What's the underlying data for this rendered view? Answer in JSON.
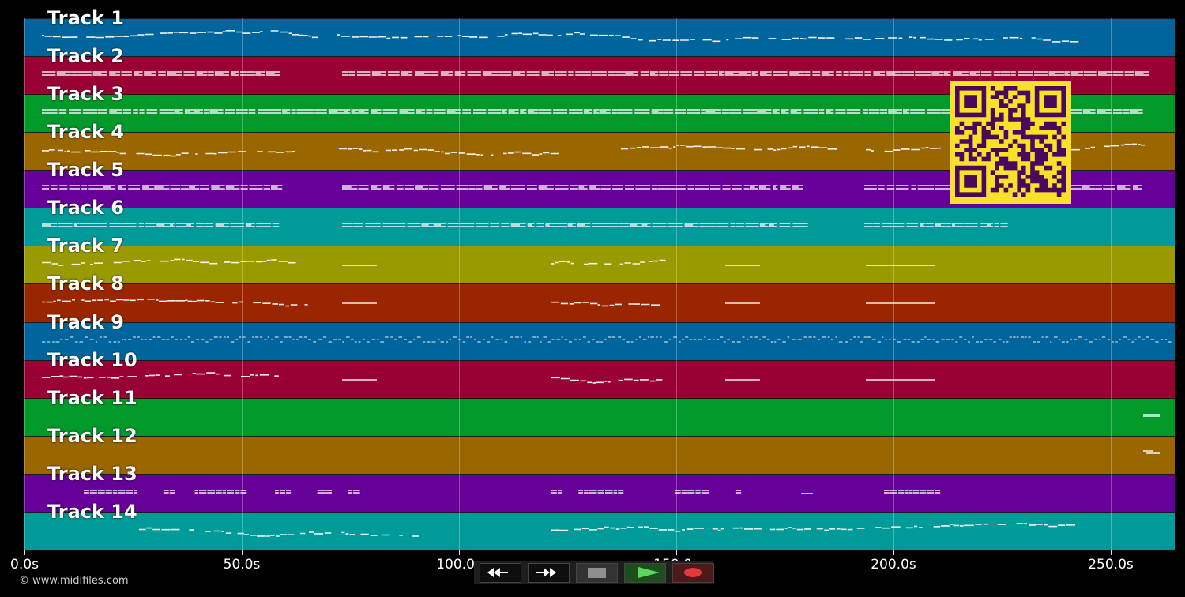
{
  "tracks": [
    {
      "label": "Track 1",
      "color": "#00659c"
    },
    {
      "label": "Track 2",
      "color": "#990033"
    },
    {
      "label": "Track 3",
      "color": "#00992a"
    },
    {
      "label": "Track 4",
      "color": "#996600"
    },
    {
      "label": "Track 5",
      "color": "#660099"
    },
    {
      "label": "Track 6",
      "color": "#009a99"
    },
    {
      "label": "Track 7",
      "color": "#999900"
    },
    {
      "label": "Track 8",
      "color": "#992600"
    },
    {
      "label": "Track 9",
      "color": "#00659c"
    },
    {
      "label": "Track 10",
      "color": "#990033"
    },
    {
      "label": "Track 11",
      "color": "#00992a"
    },
    {
      "label": "Track 12",
      "color": "#996600"
    },
    {
      "label": "Track 13",
      "color": "#660099"
    },
    {
      "label": "Track 14",
      "color": "#009a99"
    }
  ],
  "timeline": {
    "ticks": [
      {
        "seconds": 0,
        "label": "0.0s"
      },
      {
        "seconds": 50,
        "label": "50.0s"
      },
      {
        "seconds": 100,
        "label": "100.0s"
      },
      {
        "seconds": 150,
        "label": "150.0s"
      },
      {
        "seconds": 200,
        "label": "200.0s"
      },
      {
        "seconds": 250,
        "label": "250.0s"
      }
    ],
    "duration_seconds": 265
  },
  "copyright": "© www.midifiles.com",
  "transport": {
    "rewind": "rewind-icon",
    "fast_forward": "fast-forward-icon",
    "stop": "stop-icon",
    "play": "play-icon",
    "record": "record-icon"
  },
  "colors": {
    "qr_background": "#f9e02a",
    "qr_modules": "#4a0a5c",
    "play_accent": "#5cd65c",
    "record_accent": "#e03a3a"
  }
}
